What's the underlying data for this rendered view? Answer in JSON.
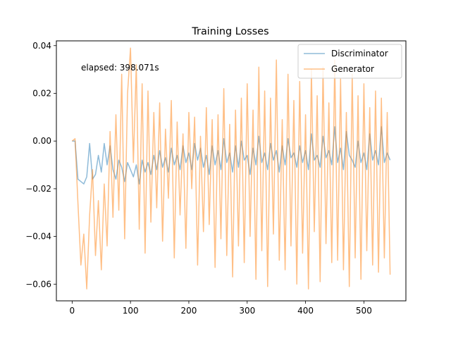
{
  "chart_data": {
    "type": "line",
    "title": "Training Losses",
    "xlabel": "",
    "ylabel": "",
    "xlim": [
      -27,
      572
    ],
    "ylim": [
      -0.067,
      0.042
    ],
    "xticks": [
      0,
      100,
      200,
      300,
      400,
      500
    ],
    "xtick_labels": [
      "0",
      "100",
      "200",
      "300",
      "400",
      "500"
    ],
    "yticks": [
      -0.06,
      -0.04,
      -0.02,
      0.0,
      0.02,
      0.04
    ],
    "ytick_labels": [
      "−0.06",
      "−0.04",
      "−0.02",
      "0.00",
      "0.02",
      "0.04"
    ],
    "grid": false,
    "legend_position": "upper right",
    "annotation": "elapsed: 398.071s",
    "series": [
      {
        "name": "Discriminator",
        "color": "#1f77b4",
        "opacity": 0.5,
        "x": [
          0,
          5,
          10,
          15,
          20,
          25,
          30,
          35,
          40,
          45,
          50,
          55,
          60,
          65,
          70,
          75,
          80,
          85,
          90,
          95,
          100,
          105,
          110,
          115,
          120,
          125,
          130,
          135,
          140,
          145,
          150,
          155,
          160,
          165,
          170,
          175,
          180,
          185,
          190,
          195,
          200,
          205,
          210,
          215,
          220,
          225,
          230,
          235,
          240,
          245,
          250,
          255,
          260,
          265,
          270,
          275,
          280,
          285,
          290,
          295,
          300,
          305,
          310,
          315,
          320,
          325,
          330,
          335,
          340,
          345,
          350,
          355,
          360,
          365,
          370,
          375,
          380,
          385,
          390,
          395,
          400,
          405,
          410,
          415,
          420,
          425,
          430,
          435,
          440,
          445,
          450,
          455,
          460,
          465,
          470,
          475,
          480,
          485,
          490,
          495,
          500,
          505,
          510,
          515,
          520,
          525,
          530,
          535,
          540,
          545
        ],
        "y": [
          0.0,
          0.0,
          -0.016,
          -0.017,
          -0.018,
          -0.015,
          -0.001,
          -0.016,
          -0.014,
          -0.006,
          -0.013,
          -0.001,
          -0.01,
          -0.002,
          -0.012,
          -0.016,
          -0.008,
          -0.011,
          -0.017,
          -0.009,
          -0.012,
          -0.015,
          -0.01,
          -0.018,
          -0.008,
          -0.013,
          -0.009,
          -0.014,
          -0.006,
          -0.012,
          -0.004,
          -0.011,
          -0.007,
          -0.013,
          -0.003,
          -0.01,
          -0.006,
          -0.012,
          -0.002,
          -0.009,
          -0.005,
          -0.012,
          -0.001,
          -0.008,
          -0.003,
          -0.011,
          -0.006,
          -0.014,
          -0.002,
          -0.01,
          -0.004,
          -0.012,
          0.001,
          -0.009,
          -0.005,
          -0.013,
          -0.002,
          -0.011,
          0.0,
          -0.008,
          -0.006,
          -0.014,
          -0.003,
          -0.01,
          0.002,
          -0.009,
          -0.005,
          -0.012,
          -0.001,
          -0.008,
          -0.004,
          -0.013,
          -0.002,
          -0.01,
          0.001,
          -0.007,
          -0.005,
          -0.011,
          -0.002,
          -0.009,
          -0.004,
          -0.012,
          0.003,
          -0.008,
          -0.006,
          -0.011,
          0.002,
          -0.007,
          -0.004,
          -0.01,
          0.006,
          -0.009,
          -0.003,
          -0.012,
          0.004,
          -0.006,
          -0.008,
          -0.011,
          0.0,
          -0.009,
          -0.005,
          -0.012,
          0.003,
          -0.008,
          -0.004,
          -0.01,
          0.006,
          -0.009,
          -0.005,
          -0.008
        ]
      },
      {
        "name": "Generator",
        "color": "#ff7f0e",
        "opacity": 0.5,
        "x": [
          0,
          5,
          10,
          15,
          20,
          25,
          30,
          35,
          40,
          45,
          50,
          55,
          60,
          65,
          70,
          75,
          80,
          85,
          90,
          95,
          100,
          105,
          110,
          115,
          120,
          125,
          130,
          135,
          140,
          145,
          150,
          155,
          160,
          165,
          170,
          175,
          180,
          185,
          190,
          195,
          200,
          205,
          210,
          215,
          220,
          225,
          230,
          235,
          240,
          245,
          250,
          255,
          260,
          265,
          270,
          275,
          280,
          285,
          290,
          295,
          300,
          305,
          310,
          315,
          320,
          325,
          330,
          335,
          340,
          345,
          350,
          355,
          360,
          365,
          370,
          375,
          380,
          385,
          390,
          395,
          400,
          405,
          410,
          415,
          420,
          425,
          430,
          435,
          440,
          445,
          450,
          455,
          460,
          465,
          470,
          475,
          480,
          485,
          490,
          495,
          500,
          505,
          510,
          515,
          520,
          525,
          530,
          535,
          540,
          545
        ],
        "y": [
          0.0,
          0.001,
          -0.026,
          -0.052,
          -0.039,
          -0.062,
          -0.031,
          -0.012,
          -0.048,
          -0.025,
          -0.054,
          -0.018,
          -0.044,
          0.004,
          -0.032,
          0.011,
          -0.029,
          0.028,
          -0.041,
          0.02,
          0.039,
          -0.009,
          0.032,
          -0.037,
          0.024,
          -0.047,
          0.021,
          -0.034,
          0.012,
          -0.028,
          0.016,
          -0.042,
          0.005,
          -0.024,
          0.017,
          -0.049,
          0.008,
          -0.031,
          0.003,
          -0.045,
          0.012,
          -0.02,
          0.01,
          -0.052,
          0.002,
          -0.038,
          0.014,
          -0.035,
          0.009,
          -0.053,
          0.011,
          -0.041,
          0.022,
          -0.048,
          0.007,
          -0.057,
          0.013,
          -0.044,
          0.018,
          -0.051,
          0.024,
          -0.04,
          0.013,
          -0.058,
          0.031,
          -0.046,
          0.021,
          -0.061,
          0.018,
          -0.039,
          0.034,
          -0.05,
          0.009,
          -0.054,
          0.028,
          -0.044,
          0.017,
          -0.06,
          0.025,
          -0.047,
          0.011,
          -0.062,
          0.03,
          -0.038,
          0.019,
          -0.059,
          0.031,
          -0.043,
          0.016,
          -0.051,
          0.034,
          -0.05,
          0.026,
          -0.054,
          0.012,
          -0.061,
          0.028,
          -0.049,
          0.019,
          -0.058,
          0.024,
          -0.046,
          0.014,
          -0.052,
          0.021,
          -0.055,
          0.018,
          -0.049,
          0.012,
          -0.056
        ]
      }
    ]
  }
}
